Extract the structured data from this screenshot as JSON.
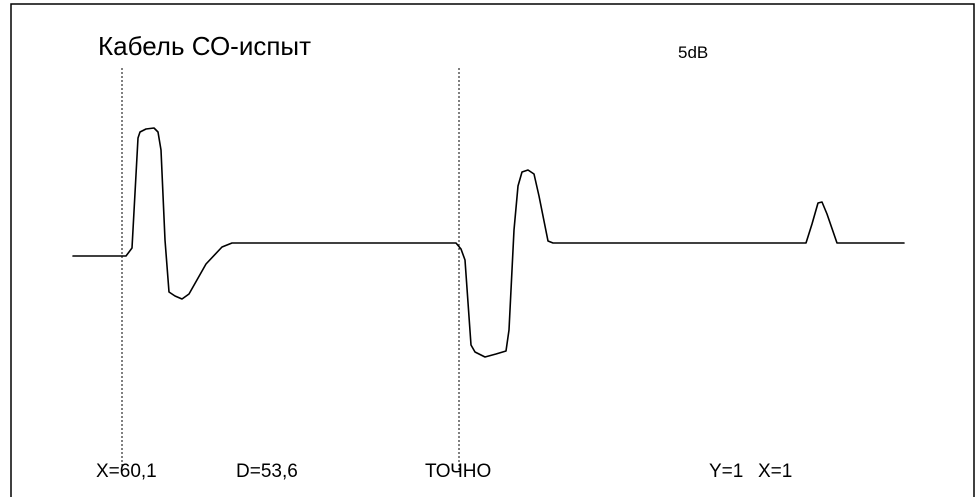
{
  "title": "Кабель СО-испыт",
  "gain": "5dB",
  "status": {
    "x": "X=60,1",
    "d": "D=53,6",
    "mode": "ТОЧНО",
    "y_scale": "Y=1",
    "x_scale": "X=1"
  },
  "colors": {
    "background": "#ffffff",
    "trace": "#000000",
    "frame": "#000000"
  }
}
